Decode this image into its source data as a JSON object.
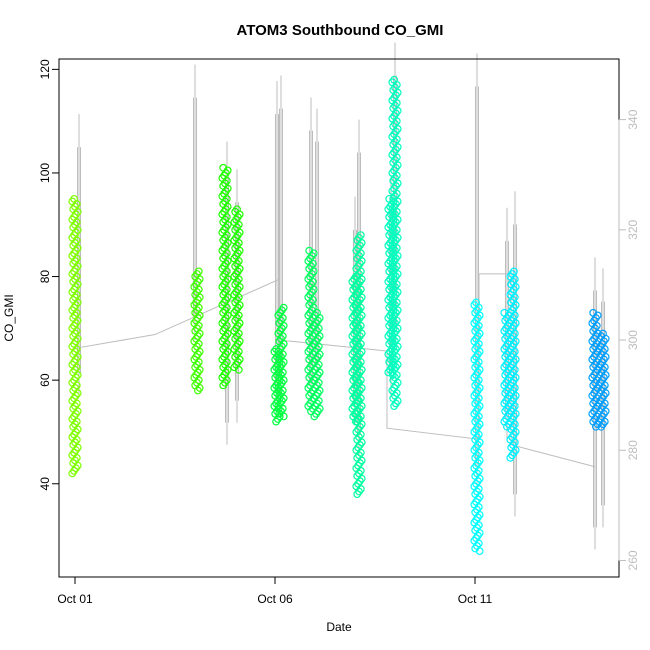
{
  "chart_data": {
    "type": "scatter",
    "title": "ATOM3 Southbound CO_GMI",
    "xlabel": "Date",
    "ylabel": "CO_GMI",
    "x_ticks": [
      {
        "day": 1,
        "label": "Oct 01"
      },
      {
        "day": 6,
        "label": "Oct 06"
      },
      {
        "day": 11,
        "label": "Oct 11"
      }
    ],
    "xlim_days": [
      0.6,
      14.6
    ],
    "ylim": [
      22,
      122
    ],
    "y_ticks": [
      40,
      60,
      80,
      100,
      120
    ],
    "y2_ticks": [
      260,
      280,
      300,
      320,
      340
    ],
    "y2lim": [
      257,
      351
    ],
    "grid": false,
    "legend": "none",
    "series": [
      {
        "x": 1.0,
        "y_min": 42,
        "y_max": 95,
        "color": "#7FFF00"
      },
      {
        "x": 4.05,
        "y_min": 58,
        "y_max": 81,
        "color": "#3FFF00"
      },
      {
        "x": 4.75,
        "y_min": 59,
        "y_max": 101,
        "color": "#1FFF00"
      },
      {
        "x": 5.05,
        "y_min": 62,
        "y_max": 93,
        "color": "#1FFF00"
      },
      {
        "x": 6.05,
        "y_min": 52,
        "y_max": 66,
        "color": "#00FF3F"
      },
      {
        "x": 6.15,
        "y_min": 53,
        "y_max": 74,
        "color": "#00FF3F"
      },
      {
        "x": 6.9,
        "y_min": 54,
        "y_max": 85,
        "color": "#00FF5F"
      },
      {
        "x": 7.05,
        "y_min": 53,
        "y_max": 73,
        "color": "#00FF5F"
      },
      {
        "x": 8.0,
        "y_min": 52,
        "y_max": 80,
        "color": "#00FF9F"
      },
      {
        "x": 8.1,
        "y_min": 38,
        "y_max": 88,
        "color": "#00FF9F"
      },
      {
        "x": 8.9,
        "y_min": 61,
        "y_max": 95,
        "color": "#00FFBF"
      },
      {
        "x": 9.0,
        "y_min": 55,
        "y_max": 118,
        "color": "#00FFBF"
      },
      {
        "x": 11.05,
        "y_min": 27,
        "y_max": 75,
        "color": "#00FFFF"
      },
      {
        "x": 11.8,
        "y_min": 51,
        "y_max": 73,
        "color": "#00EFFF"
      },
      {
        "x": 11.95,
        "y_min": 45,
        "y_max": 81,
        "color": "#00EFFF"
      },
      {
        "x": 14.0,
        "y_min": 51,
        "y_max": 73,
        "color": "#009FFF"
      },
      {
        "x": 14.2,
        "y_min": 51,
        "y_max": 69,
        "color": "#009FFF"
      }
    ],
    "secondary_line": {
      "color": "#bdbdbd",
      "points": [
        [
          1.0,
          298.5
        ],
        [
          3.0,
          301
        ],
        [
          6.1,
          311
        ],
        [
          6.1,
          300
        ],
        [
          8.8,
          298
        ],
        [
          8.8,
          284
        ],
        [
          11.1,
          282
        ],
        [
          11.1,
          312
        ],
        [
          11.9,
          312
        ],
        [
          11.9,
          281
        ],
        [
          14.0,
          277
        ]
      ],
      "spikes": [
        {
          "x": 1.1,
          "y2_min": 290,
          "y2_max": 341
        },
        {
          "x": 4.0,
          "y2_min": 300,
          "y2_max": 350
        },
        {
          "x": 4.8,
          "y2_min": 281,
          "y2_max": 336
        },
        {
          "x": 5.05,
          "y2_min": 285,
          "y2_max": 331
        },
        {
          "x": 6.05,
          "y2_min": 287,
          "y2_max": 347
        },
        {
          "x": 6.15,
          "y2_min": 290,
          "y2_max": 348
        },
        {
          "x": 6.9,
          "y2_min": 288,
          "y2_max": 344
        },
        {
          "x": 7.05,
          "y2_min": 292,
          "y2_max": 342
        },
        {
          "x": 8.0,
          "y2_min": 285,
          "y2_max": 326
        },
        {
          "x": 8.1,
          "y2_min": 279,
          "y2_max": 340
        },
        {
          "x": 8.9,
          "y2_min": 290,
          "y2_max": 330
        },
        {
          "x": 9.0,
          "y2_min": 298,
          "y2_max": 354
        },
        {
          "x": 11.05,
          "y2_min": 273,
          "y2_max": 352
        },
        {
          "x": 11.8,
          "y2_min": 282,
          "y2_max": 324
        },
        {
          "x": 12.0,
          "y2_min": 268,
          "y2_max": 327
        },
        {
          "x": 14.0,
          "y2_min": 262,
          "y2_max": 315
        },
        {
          "x": 14.2,
          "y2_min": 266,
          "y2_max": 313
        }
      ]
    }
  }
}
